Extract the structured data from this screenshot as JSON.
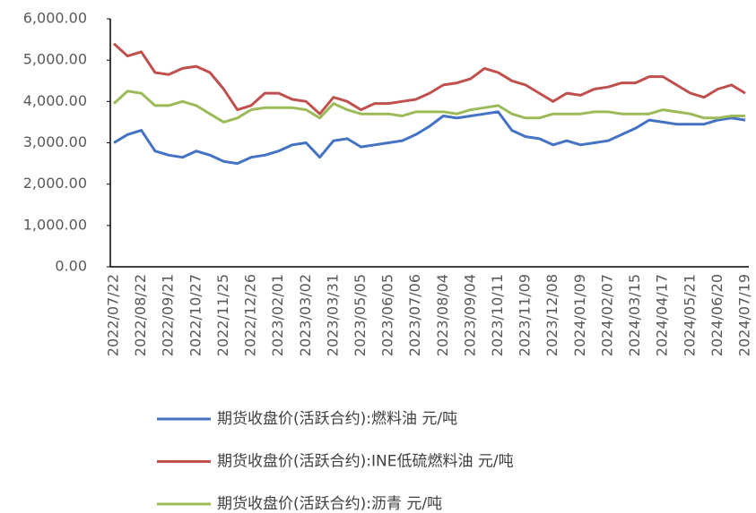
{
  "chart_data": {
    "type": "line",
    "categories": [
      "2022/07/22",
      null,
      "2022/08/22",
      null,
      "2022/09/21",
      null,
      "2022/10/27",
      null,
      "2022/11/25",
      null,
      "2022/12/26",
      null,
      "2023/02/01",
      null,
      "2023/03/02",
      null,
      "2023/03/31",
      null,
      "2023/05/05",
      null,
      "2023/06/05",
      null,
      "2023/07/06",
      null,
      "2023/08/04",
      null,
      "2023/09/04",
      null,
      "2023/10/11",
      null,
      "2023/11/09",
      null,
      "2023/12/08",
      null,
      "2024/01/09",
      null,
      "2024/02/07",
      null,
      "2024/03/15",
      null,
      "2024/04/17",
      null,
      "2024/05/21",
      null,
      "2024/06/20",
      null,
      "2024/07/19"
    ],
    "series": [
      {
        "name": "期货收盘价(活跃合约):燃料油 元/吨",
        "color": "#4472c4",
        "values": [
          3000,
          3200,
          3300,
          2800,
          2700,
          2650,
          2800,
          2700,
          2550,
          2500,
          2650,
          2700,
          2800,
          2950,
          3000,
          2650,
          3050,
          3100,
          2900,
          2950,
          3000,
          3050,
          3200,
          3400,
          3650,
          3600,
          3650,
          3700,
          3750,
          3300,
          3150,
          3100,
          2950,
          3050,
          2950,
          3000,
          3050,
          3200,
          3350,
          3550,
          3500,
          3450,
          3450,
          3450,
          3550,
          3600,
          3550
        ]
      },
      {
        "name": "期货收盘价(活跃合约):INE低硫燃料油 元/吨",
        "color": "#c0504d",
        "values": [
          5400,
          5100,
          5200,
          4700,
          4650,
          4800,
          4850,
          4700,
          4300,
          3800,
          3900,
          4200,
          4200,
          4050,
          4000,
          3700,
          4100,
          4000,
          3800,
          3950,
          3950,
          4000,
          4050,
          4200,
          4400,
          4450,
          4550,
          4800,
          4700,
          4500,
          4400,
          4200,
          4000,
          4200,
          4150,
          4300,
          4350,
          4450,
          4450,
          4600,
          4600,
          4400,
          4200,
          4100,
          4300,
          4400,
          4200
        ]
      },
      {
        "name": "期货收盘价(活跃合约):沥青 元/吨",
        "color": "#9bbb59",
        "values": [
          3950,
          4250,
          4200,
          3900,
          3900,
          4000,
          3900,
          3700,
          3500,
          3600,
          3800,
          3850,
          3850,
          3850,
          3800,
          3600,
          3950,
          3800,
          3700,
          3700,
          3700,
          3650,
          3750,
          3750,
          3750,
          3700,
          3800,
          3850,
          3900,
          3700,
          3600,
          3600,
          3700,
          3700,
          3700,
          3750,
          3750,
          3700,
          3700,
          3700,
          3800,
          3750,
          3700,
          3600,
          3600,
          3650,
          3650
        ]
      }
    ],
    "ylim": [
      0,
      6000
    ],
    "yticks": [
      {
        "value": 0,
        "label": "0.00"
      },
      {
        "value": 1000,
        "label": "1,000.00"
      },
      {
        "value": 2000,
        "label": "2,000.00"
      },
      {
        "value": 3000,
        "label": "3,000.00"
      },
      {
        "value": 4000,
        "label": "4,000.00"
      },
      {
        "value": 5000,
        "label": "5,000.00"
      },
      {
        "value": 6000,
        "label": "6,000.00"
      }
    ],
    "legend": "bottom"
  }
}
